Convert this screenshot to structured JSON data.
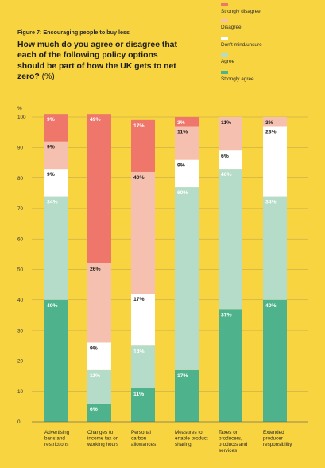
{
  "figure_label": "Figure 7: Encouraging people to buy less",
  "title": "How much do you agree or disagree that each of the following policy options should be part of how the UK gets to net zero?",
  "title_unit": "(%)",
  "colors": {
    "strongly_disagree": "#ee766b",
    "disagree": "#f5c0b0",
    "dont_mind": "#ffffff",
    "agree": "#b5dcc8",
    "strongly_agree": "#4eb38c",
    "background": "#f8d441"
  },
  "legend": [
    {
      "key": "strongly_disagree",
      "label": "Strongly disagree"
    },
    {
      "key": "disagree",
      "label": "Disagree"
    },
    {
      "key": "dont_mind",
      "label": "Don't mind/unsure"
    },
    {
      "key": "agree",
      "label": "Agree"
    },
    {
      "key": "strongly_agree",
      "label": "Strongly agree"
    }
  ],
  "chart_data": {
    "type": "bar",
    "stacked": true,
    "ylabel": "%",
    "ylim": [
      0,
      100
    ],
    "yticks": [
      0,
      10,
      20,
      30,
      40,
      50,
      60,
      70,
      80,
      90,
      100
    ],
    "grid": true,
    "legend_position": "top-right",
    "categories": [
      "Advertising bans and restrictions",
      "Changes to income tax or working hours",
      "Personal carbon allowances",
      "Measures to enable product sharing",
      "Taxes on producers, products and services",
      "Extended producer responsibility"
    ],
    "series": [
      {
        "name": "Strongly agree",
        "key": "strongly_agree",
        "values": [
          40,
          6,
          11,
          17,
          37,
          40
        ],
        "labels": [
          "40%",
          "6%",
          "11%",
          "17%",
          "37%",
          "40%"
        ]
      },
      {
        "name": "Agree",
        "key": "agree",
        "values": [
          34,
          11,
          14,
          60,
          46,
          34
        ],
        "labels": [
          "34%",
          "11%",
          "14%",
          "60%",
          "46%",
          "34%"
        ]
      },
      {
        "name": "Don't mind/unsure",
        "key": "dont_mind",
        "values": [
          9,
          9,
          17,
          9,
          6,
          23
        ],
        "labels": [
          "9%",
          "9%",
          "17%",
          "9%",
          "6%",
          "23%"
        ]
      },
      {
        "name": "Disagree",
        "key": "disagree",
        "values": [
          9,
          26,
          40,
          11,
          11,
          3
        ],
        "labels": [
          "9%",
          "26%",
          "40%",
          "11%",
          "11%",
          "3%"
        ]
      },
      {
        "name": "Strongly disagree",
        "key": "strongly_disagree",
        "values": [
          9,
          49,
          17,
          3,
          0,
          0
        ],
        "labels": [
          "9%",
          "49%",
          "17%",
          "3%",
          "",
          ""
        ]
      }
    ]
  }
}
